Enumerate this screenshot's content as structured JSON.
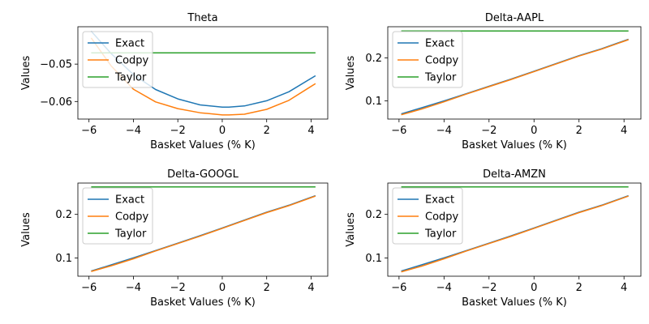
{
  "chart_data": [
    {
      "type": "line",
      "title": "Theta",
      "xlabel": "Basket Values (% K)",
      "ylabel": "Values",
      "xlim": [
        -6.5,
        4.75
      ],
      "ylim": [
        -0.0647,
        -0.04
      ],
      "xticks": [
        -6,
        -4,
        -2,
        0,
        2,
        4
      ],
      "xtick_labels": [
        "−6",
        "−4",
        "−2",
        "0",
        "2",
        "4"
      ],
      "yticks": [
        -0.06,
        -0.05
      ],
      "ytick_labels": [
        "−0.06",
        "−0.05"
      ],
      "legend": "upper-left",
      "x": [
        -5.9,
        -5.0,
        -4.0,
        -3.0,
        -2.0,
        -1.0,
        0.0,
        0.3,
        1.0,
        2.0,
        3.0,
        4.2
      ],
      "series": [
        {
          "name": "Exact",
          "color": "#1f77b4",
          "values": [
            -0.0412,
            -0.0472,
            -0.0528,
            -0.0568,
            -0.0593,
            -0.0609,
            -0.0615,
            -0.0615,
            -0.0612,
            -0.0598,
            -0.0574,
            -0.0531
          ]
        },
        {
          "name": "Codpy",
          "color": "#ff7f0e",
          "values": [
            -0.043,
            -0.0505,
            -0.0567,
            -0.0601,
            -0.0619,
            -0.063,
            -0.0636,
            -0.0636,
            -0.0634,
            -0.0621,
            -0.0597,
            -0.0552
          ]
        },
        {
          "name": "Taylor",
          "color": "#2ca02c",
          "values": [
            -0.047,
            -0.047,
            -0.047,
            -0.047,
            -0.047,
            -0.047,
            -0.047,
            -0.047,
            -0.047,
            -0.047,
            -0.047,
            -0.047
          ]
        }
      ]
    },
    {
      "type": "line",
      "title": "Delta-AAPL",
      "xlabel": "Basket Values (% K)",
      "ylabel": "Values",
      "xlim": [
        -6.5,
        4.75
      ],
      "ylim": [
        0.058,
        0.272
      ],
      "xticks": [
        -6,
        -4,
        -2,
        0,
        2,
        4
      ],
      "xtick_labels": [
        "−6",
        "−4",
        "−2",
        "0",
        "2",
        "4"
      ],
      "yticks": [
        0.1,
        0.2
      ],
      "ytick_labels": [
        "0.1",
        "0.2"
      ],
      "legend": "upper-left",
      "x": [
        -5.9,
        -5.0,
        -4.0,
        -3.0,
        -2.0,
        -1.0,
        0.0,
        1.0,
        2.0,
        3.0,
        4.2
      ],
      "series": [
        {
          "name": "Exact",
          "color": "#1f77b4",
          "values": [
            0.07,
            0.084,
            0.1,
            0.117,
            0.134,
            0.151,
            0.169,
            0.187,
            0.205,
            0.221,
            0.243
          ]
        },
        {
          "name": "Codpy",
          "color": "#ff7f0e",
          "values": [
            0.068,
            0.081,
            0.098,
            0.116,
            0.133,
            0.15,
            0.168,
            0.186,
            0.204,
            0.22,
            0.242
          ]
        },
        {
          "name": "Taylor",
          "color": "#2ca02c",
          "values": [
            0.262,
            0.262,
            0.262,
            0.262,
            0.262,
            0.262,
            0.262,
            0.262,
            0.262,
            0.262,
            0.262
          ]
        }
      ]
    },
    {
      "type": "line",
      "title": "Delta-GOOGL",
      "xlabel": "Basket Values (% K)",
      "ylabel": "Values",
      "xlim": [
        -6.5,
        4.75
      ],
      "ylim": [
        0.058,
        0.272
      ],
      "xticks": [
        -6,
        -4,
        -2,
        0,
        2,
        4
      ],
      "xtick_labels": [
        "−6",
        "−4",
        "−2",
        "0",
        "2",
        "4"
      ],
      "yticks": [
        0.1,
        0.2
      ],
      "ytick_labels": [
        "0.1",
        "0.2"
      ],
      "legend": "upper-left",
      "x": [
        -5.9,
        -5.0,
        -4.0,
        -3.0,
        -2.0,
        -1.0,
        0.0,
        1.0,
        2.0,
        3.0,
        4.2
      ],
      "series": [
        {
          "name": "Exact",
          "color": "#1f77b4",
          "values": [
            0.07,
            0.084,
            0.1,
            0.117,
            0.134,
            0.151,
            0.169,
            0.187,
            0.205,
            0.221,
            0.243
          ]
        },
        {
          "name": "Codpy",
          "color": "#ff7f0e",
          "values": [
            0.069,
            0.082,
            0.098,
            0.116,
            0.133,
            0.15,
            0.168,
            0.186,
            0.204,
            0.22,
            0.242
          ]
        },
        {
          "name": "Taylor",
          "color": "#2ca02c",
          "values": [
            0.263,
            0.263,
            0.263,
            0.263,
            0.263,
            0.263,
            0.263,
            0.263,
            0.263,
            0.263,
            0.263
          ]
        }
      ]
    },
    {
      "type": "line",
      "title": "Delta-AMZN",
      "xlabel": "Basket Values (% K)",
      "ylabel": "Values",
      "xlim": [
        -6.5,
        4.75
      ],
      "ylim": [
        0.058,
        0.272
      ],
      "xticks": [
        -6,
        -4,
        -2,
        0,
        2,
        4
      ],
      "xtick_labels": [
        "−6",
        "−4",
        "−2",
        "0",
        "2",
        "4"
      ],
      "yticks": [
        0.1,
        0.2
      ],
      "ytick_labels": [
        "0.1",
        "0.2"
      ],
      "legend": "upper-left",
      "x": [
        -5.9,
        -5.0,
        -4.0,
        -3.0,
        -2.0,
        -1.0,
        0.0,
        1.0,
        2.0,
        3.0,
        4.2
      ],
      "series": [
        {
          "name": "Exact",
          "color": "#1f77b4",
          "values": [
            0.07,
            0.084,
            0.1,
            0.117,
            0.134,
            0.151,
            0.169,
            0.187,
            0.205,
            0.221,
            0.243
          ]
        },
        {
          "name": "Codpy",
          "color": "#ff7f0e",
          "values": [
            0.068,
            0.081,
            0.098,
            0.116,
            0.133,
            0.15,
            0.168,
            0.186,
            0.204,
            0.22,
            0.242
          ]
        },
        {
          "name": "Taylor",
          "color": "#2ca02c",
          "values": [
            0.263,
            0.263,
            0.263,
            0.263,
            0.263,
            0.263,
            0.263,
            0.263,
            0.263,
            0.263,
            0.263
          ]
        }
      ]
    }
  ]
}
